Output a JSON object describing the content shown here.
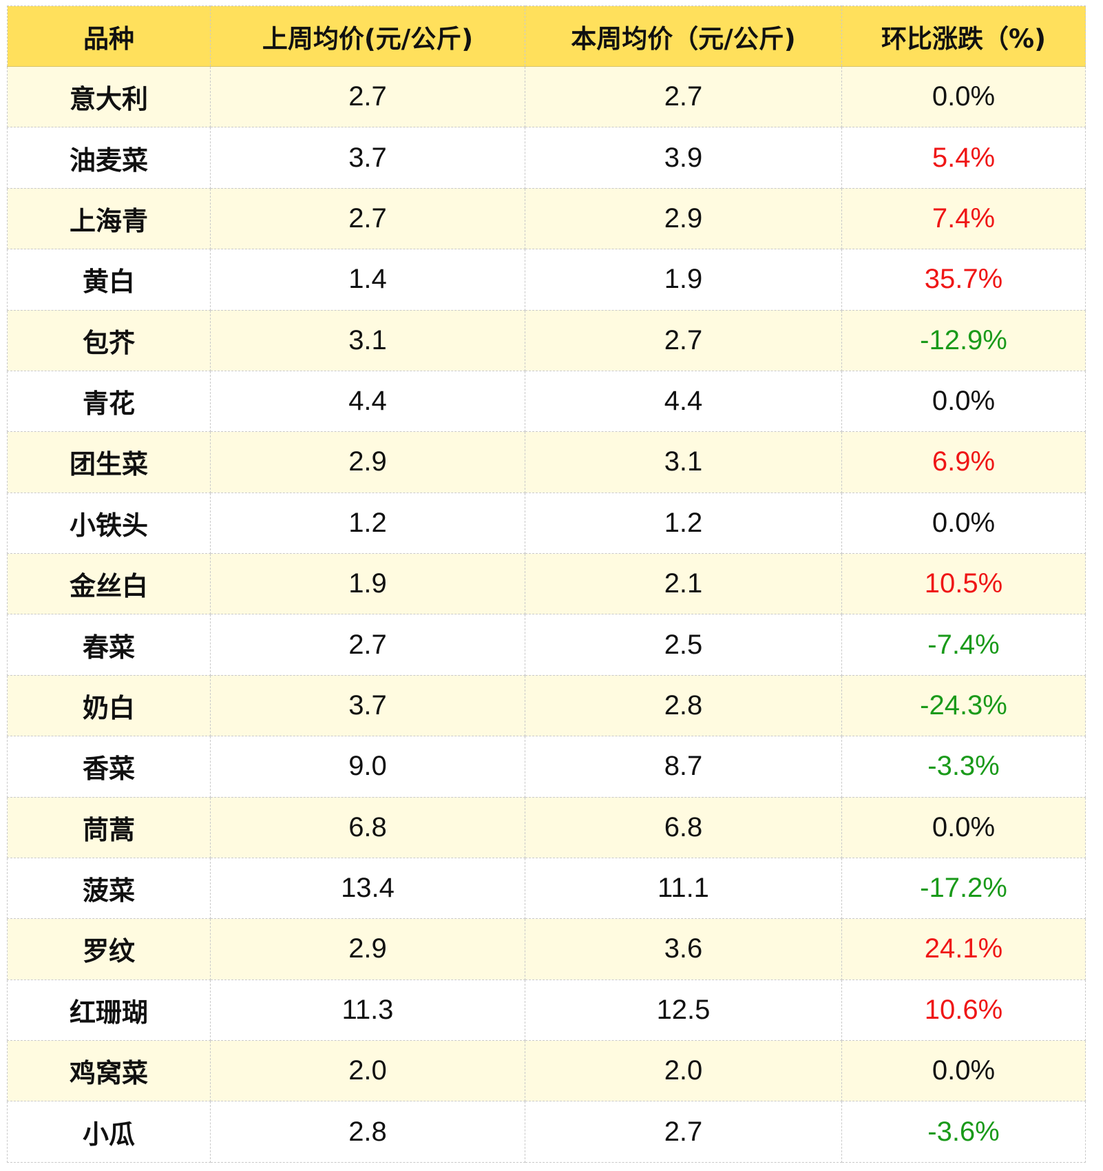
{
  "table": {
    "headers": [
      "品种",
      "上周均价(元/公斤)",
      "本周均价（元/公斤)",
      "环比涨跌（%)"
    ],
    "colors": {
      "header_bg": "#ffe05c",
      "row_tint": "#fffbe0",
      "rise": "#ef1616",
      "fall": "#1a9a1a",
      "flat": "#111111"
    },
    "rows": [
      {
        "name": "意大利",
        "last_week": "2.7",
        "this_week": "2.7",
        "change": "0.0%",
        "trend": "flat"
      },
      {
        "name": "油麦菜",
        "last_week": "3.7",
        "this_week": "3.9",
        "change": "5.4%",
        "trend": "up"
      },
      {
        "name": "上海青",
        "last_week": "2.7",
        "this_week": "2.9",
        "change": "7.4%",
        "trend": "up"
      },
      {
        "name": "黄白",
        "last_week": "1.4",
        "this_week": "1.9",
        "change": "35.7%",
        "trend": "up"
      },
      {
        "name": "包芥",
        "last_week": "3.1",
        "this_week": "2.7",
        "change": "-12.9%",
        "trend": "down"
      },
      {
        "name": "青花",
        "last_week": "4.4",
        "this_week": "4.4",
        "change": "0.0%",
        "trend": "flat"
      },
      {
        "name": "团生菜",
        "last_week": "2.9",
        "this_week": "3.1",
        "change": "6.9%",
        "trend": "up"
      },
      {
        "name": "小铁头",
        "last_week": "1.2",
        "this_week": "1.2",
        "change": "0.0%",
        "trend": "flat"
      },
      {
        "name": "金丝白",
        "last_week": "1.9",
        "this_week": "2.1",
        "change": "10.5%",
        "trend": "up"
      },
      {
        "name": "春菜",
        "last_week": "2.7",
        "this_week": "2.5",
        "change": "-7.4%",
        "trend": "down"
      },
      {
        "name": "奶白",
        "last_week": "3.7",
        "this_week": "2.8",
        "change": "-24.3%",
        "trend": "down"
      },
      {
        "name": "香菜",
        "last_week": "9.0",
        "this_week": "8.7",
        "change": "-3.3%",
        "trend": "down"
      },
      {
        "name": "茼蒿",
        "last_week": "6.8",
        "this_week": "6.8",
        "change": "0.0%",
        "trend": "flat"
      },
      {
        "name": "菠菜",
        "last_week": "13.4",
        "this_week": "11.1",
        "change": "-17.2%",
        "trend": "down"
      },
      {
        "name": "罗纹",
        "last_week": "2.9",
        "this_week": "3.6",
        "change": "24.1%",
        "trend": "up"
      },
      {
        "name": "红珊瑚",
        "last_week": "11.3",
        "this_week": "12.5",
        "change": "10.6%",
        "trend": "up"
      },
      {
        "name": "鸡窝菜",
        "last_week": "2.0",
        "this_week": "2.0",
        "change": "0.0%",
        "trend": "flat"
      },
      {
        "name": "小瓜",
        "last_week": "2.8",
        "this_week": "2.7",
        "change": "-3.6%",
        "trend": "down"
      }
    ]
  }
}
